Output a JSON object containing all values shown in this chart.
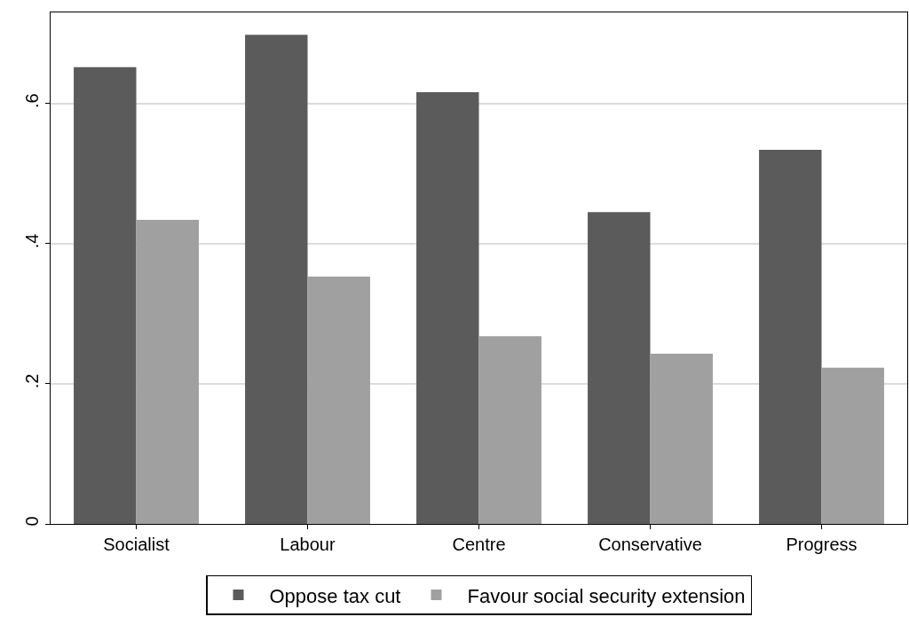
{
  "chart_data": {
    "type": "bar",
    "categories": [
      "Socialist",
      "Labour",
      "Centre",
      "Conservative",
      "Progress"
    ],
    "series": [
      {
        "name": "Oppose tax cut",
        "color": "#5b5b5b",
        "values": [
          0.652,
          0.698,
          0.616,
          0.445,
          0.534
        ]
      },
      {
        "name": "Favour social security extension",
        "color": "#a0a0a0",
        "values": [
          0.434,
          0.353,
          0.268,
          0.243,
          0.223
        ]
      }
    ],
    "ylim": [
      0,
      0.73
    ],
    "yticks": [
      {
        "value": 0,
        "label": "0"
      },
      {
        "value": 0.2,
        "label": ".2"
      },
      {
        "value": 0.4,
        "label": ".4"
      },
      {
        "value": 0.6,
        "label": ".6"
      }
    ],
    "grid": "y",
    "legend": "bottom"
  }
}
